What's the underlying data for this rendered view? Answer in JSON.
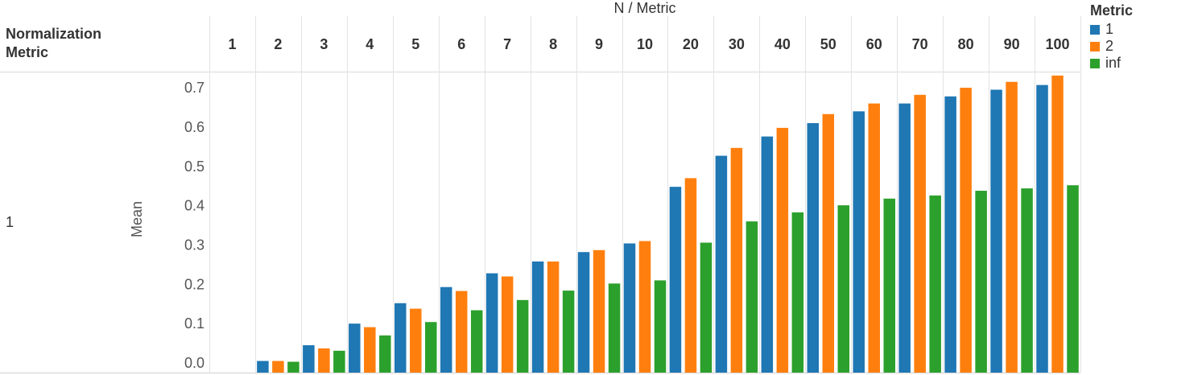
{
  "header": {
    "column_title": "N  /  Metric",
    "row_header_line1": "Normalization",
    "row_header_line2": "Metric",
    "row_value": "1"
  },
  "legend": {
    "title": "Metric",
    "items": [
      {
        "label": "1",
        "color": "#1f77b4"
      },
      {
        "label": "2",
        "color": "#ff7f0e"
      },
      {
        "label": "inf",
        "color": "#2ca02c"
      }
    ]
  },
  "chart_data": {
    "type": "bar",
    "title": "",
    "xlabel": "N  /  Metric",
    "ylabel": "Mean",
    "ylim": [
      -0.025,
      0.76
    ],
    "yticks": [
      0.0,
      0.1,
      0.2,
      0.3,
      0.4,
      0.5,
      0.6,
      0.7
    ],
    "ytick_labels": [
      "0.0",
      "0.1",
      "0.2",
      "0.3",
      "0.4",
      "0.5",
      "0.6",
      "0.7"
    ],
    "grid": false,
    "legend_position": "top-right",
    "categories": [
      "1",
      "2",
      "3",
      "4",
      "5",
      "6",
      "7",
      "8",
      "9",
      "10",
      "20",
      "30",
      "40",
      "50",
      "60",
      "70",
      "80",
      "90",
      "100"
    ],
    "series": [
      {
        "name": "1",
        "color": "#1f77b4",
        "values": [
          0.0,
          0.005,
          0.045,
          0.1,
          0.152,
          0.193,
          0.228,
          0.258,
          0.282,
          0.304,
          0.448,
          0.527,
          0.576,
          0.61,
          0.64,
          0.66,
          0.678,
          0.695,
          0.707
        ]
      },
      {
        "name": "2",
        "color": "#ff7f0e",
        "values": [
          0.0,
          0.005,
          0.037,
          0.091,
          0.138,
          0.183,
          0.22,
          0.258,
          0.287,
          0.31,
          0.47,
          0.547,
          0.598,
          0.633,
          0.66,
          0.682,
          0.7,
          0.715,
          0.731
        ]
      },
      {
        "name": "inf",
        "color": "#2ca02c",
        "values": [
          0.0,
          0.003,
          0.031,
          0.07,
          0.104,
          0.134,
          0.16,
          0.184,
          0.202,
          0.21,
          0.306,
          0.36,
          0.383,
          0.401,
          0.418,
          0.426,
          0.438,
          0.444,
          0.452
        ]
      }
    ]
  }
}
